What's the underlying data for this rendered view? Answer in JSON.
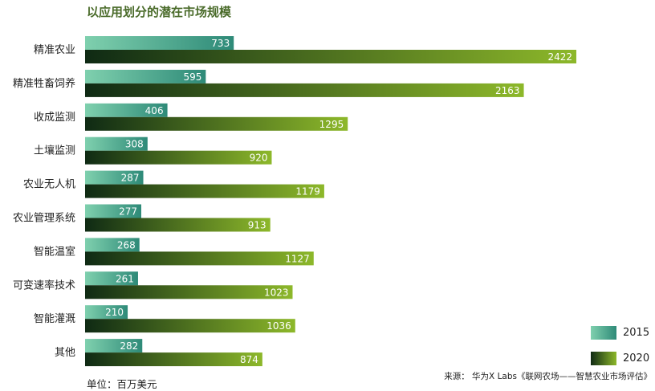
{
  "title": "以应用划分的潜在市场规模",
  "unit_label": "单位：百万美元",
  "source_label": "来源： 华为X Labs《联网农场——智慧农业市场评估》",
  "colors": {
    "s2015_start": "#7fd0ae",
    "s2015_end": "#2e8a78",
    "s2020_start": "#0f2a14",
    "s2020_end": "#8db82a",
    "title": "#4a6b2a"
  },
  "chart_data": {
    "type": "bar",
    "orientation": "horizontal",
    "title": "以应用划分的潜在市场规模",
    "categories": [
      "精准农业",
      "精准牲畜饲养",
      "收成监测",
      "土壤监测",
      "农业无人机",
      "农业管理系统",
      "智能温室",
      "可变速率技术",
      "智能灌溉",
      "其他"
    ],
    "series": [
      {
        "name": "2015",
        "values": [
          733,
          595,
          406,
          308,
          287,
          277,
          268,
          261,
          210,
          282
        ]
      },
      {
        "name": "2020",
        "values": [
          2422,
          2163,
          1295,
          920,
          1179,
          913,
          1127,
          1023,
          1036,
          874
        ]
      }
    ],
    "xlim": [
      0,
      2422
    ],
    "grid": false,
    "legend": "bottom-right",
    "data_labels": true
  }
}
